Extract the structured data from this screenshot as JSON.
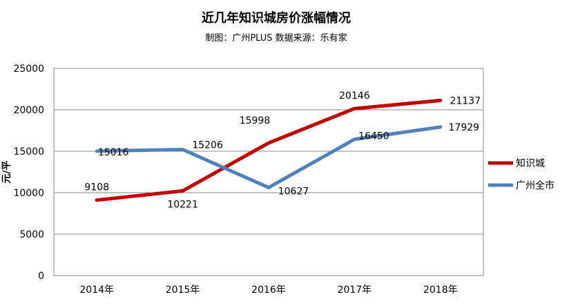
{
  "chart_data": {
    "type": "line",
    "title": "近几年知识城房价涨幅情况",
    "subtitle": "制图：广州PLUS  数据来源：乐有家",
    "ylabel": "元/平",
    "xlabel": "",
    "categories": [
      "2014年",
      "2015年",
      "2016年",
      "2017年",
      "2018年"
    ],
    "ylim": [
      0,
      25000
    ],
    "yticks": [
      0,
      5000,
      10000,
      15000,
      20000,
      25000
    ],
    "grid": true,
    "legend_position": "right",
    "series": [
      {
        "name": "知识城",
        "color": "#C00000",
        "values": [
          9108,
          10221,
          15998,
          20146,
          21137
        ]
      },
      {
        "name": "广州全市",
        "color": "#4F81BD",
        "values": [
          15016,
          15206,
          10627,
          16450,
          17929
        ]
      }
    ]
  }
}
